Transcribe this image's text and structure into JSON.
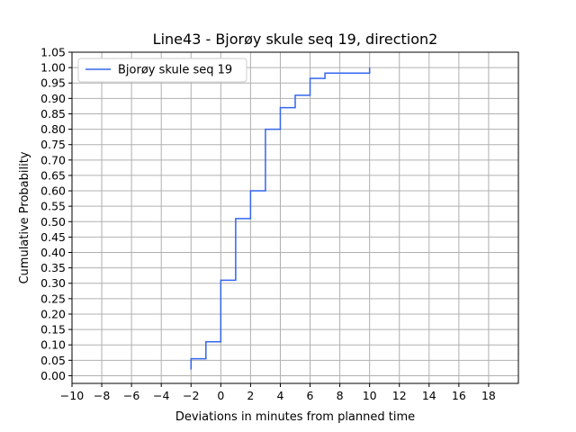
{
  "chart_data": {
    "type": "line",
    "step": "post",
    "title": "Line43 - Bjorøy skule seq 19, direction2",
    "xlabel": "Deviations in minutes from planned time",
    "ylabel": "Cumulative Probability",
    "xlim": [
      -10,
      20
    ],
    "ylim": [
      -0.025,
      1.05
    ],
    "xticks": [
      -10,
      -8,
      -6,
      -4,
      -2,
      0,
      2,
      4,
      6,
      8,
      10,
      12,
      14,
      16,
      18
    ],
    "xtick_labels": [
      "−10",
      "−8",
      "−6",
      "−4",
      "−2",
      "0",
      "2",
      "4",
      "6",
      "8",
      "10",
      "12",
      "14",
      "16",
      "18"
    ],
    "yticks": [
      0.0,
      0.05,
      0.1,
      0.15,
      0.2,
      0.25,
      0.3,
      0.35,
      0.4,
      0.45,
      0.5,
      0.55,
      0.6,
      0.65,
      0.7,
      0.75,
      0.8,
      0.85,
      0.9,
      0.95,
      1.0,
      1.05
    ],
    "ytick_labels": [
      "0.00",
      "0.05",
      "0.10",
      "0.15",
      "0.20",
      "0.25",
      "0.30",
      "0.35",
      "0.40",
      "0.45",
      "0.50",
      "0.55",
      "0.60",
      "0.65",
      "0.70",
      "0.75",
      "0.80",
      "0.85",
      "0.90",
      "0.95",
      "1.00",
      "1.05"
    ],
    "grid": true,
    "legend": "upper-left",
    "series": [
      {
        "name": "Bjorøy skule seq 19",
        "color": "#3366ee",
        "x": [
          -2,
          -2,
          -1,
          0,
          1,
          2,
          3,
          4,
          5,
          6,
          7,
          10,
          10
        ],
        "y": [
          0.02,
          0.055,
          0.11,
          0.31,
          0.51,
          0.6,
          0.8,
          0.87,
          0.91,
          0.965,
          0.982,
          0.982,
          1.0
        ]
      }
    ]
  }
}
